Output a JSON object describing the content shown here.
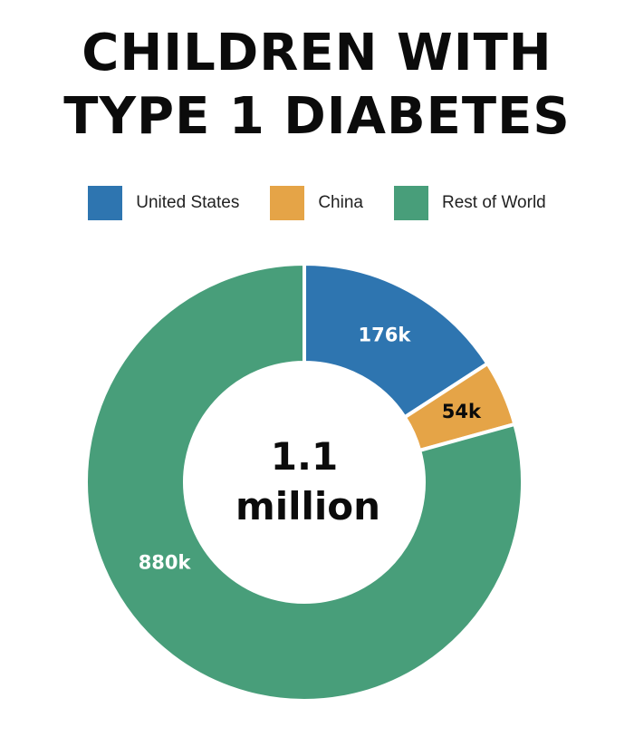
{
  "title_lines": [
    "CHILDREN WITH",
    "TYPE 1 DIABETES"
  ],
  "center": {
    "line1": "1.1",
    "line2": "million"
  },
  "chart_data": {
    "type": "pie",
    "variant": "donut",
    "title": "CHILDREN WITH TYPE 1 DIABETES",
    "center_label": "1.1 million",
    "legend_position": "top",
    "slices": [
      {
        "name": "United States",
        "value": 176,
        "label": "176k",
        "color": "#2e75b0",
        "label_color": "#ffffff"
      },
      {
        "name": "China",
        "value": 54,
        "label": "54k",
        "color": "#e5a447",
        "label_color": "#0b0b0b"
      },
      {
        "name": "Rest of World",
        "value": 880,
        "label": "880k",
        "color": "#489e7a",
        "label_color": "#ffffff"
      }
    ]
  }
}
